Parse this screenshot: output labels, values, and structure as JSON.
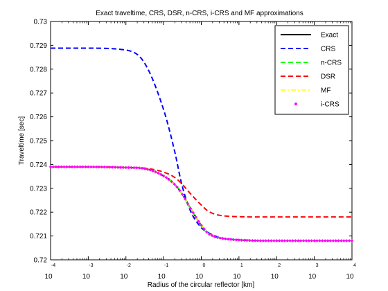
{
  "chart_data": {
    "type": "line",
    "title": "Exact traveltime, CRS, DSR, n-CRS, i-CRS and MF approximations",
    "xlabel": "Radius of the circular reflector [km]",
    "ylabel": "Traveltime [sec]",
    "xscale": "log",
    "xlim": [
      0.0001,
      10000
    ],
    "ylim": [
      0.72,
      0.73
    ],
    "grid": false,
    "legend_position": "top-right",
    "x_ticks": [
      {
        "base": "10",
        "exp": "-4"
      },
      {
        "base": "10",
        "exp": "-3"
      },
      {
        "base": "10",
        "exp": "-2"
      },
      {
        "base": "10",
        "exp": "-1"
      },
      {
        "base": "10",
        "exp": "0"
      },
      {
        "base": "10",
        "exp": "1"
      },
      {
        "base": "10",
        "exp": "2"
      },
      {
        "base": "10",
        "exp": "3"
      },
      {
        "base": "10",
        "exp": "4"
      }
    ],
    "y_ticks": [
      "0.72",
      "0.721",
      "0.722",
      "0.723",
      "0.724",
      "0.725",
      "0.726",
      "0.727",
      "0.728",
      "0.729",
      "0.73"
    ],
    "x": [
      0.0001,
      0.001,
      0.01,
      0.03,
      0.1,
      0.2,
      0.3,
      0.5,
      1,
      1.5,
      2,
      3,
      5,
      10,
      20,
      50,
      100,
      1000,
      10000
    ],
    "series": [
      {
        "name": "Exact",
        "color": "#000000",
        "style": "solid",
        "marker": "none",
        "values": [
          0.7239,
          0.7239,
          0.72387,
          0.72383,
          0.72352,
          0.72315,
          0.7228,
          0.7222,
          0.72145,
          0.72112,
          0.72101,
          0.72092,
          0.72087,
          0.72083,
          0.72081,
          0.7208,
          0.7208,
          0.7208,
          0.7208
        ]
      },
      {
        "name": "CRS",
        "color": "#0000ff",
        "style": "dash",
        "marker": "none",
        "values": [
          0.72888,
          0.72888,
          0.7288,
          0.7283,
          0.7263,
          0.7245,
          0.7232,
          0.7221,
          0.72135,
          0.72115,
          0.72105,
          0.72094,
          0.72088,
          0.72084,
          0.72082,
          0.7208,
          0.7208,
          0.7208,
          0.7208
        ]
      },
      {
        "name": "n-CRS",
        "color": "#00ff00",
        "style": "dash",
        "marker": "none",
        "values": [
          0.7239,
          0.7239,
          0.72387,
          0.72383,
          0.72352,
          0.72315,
          0.7228,
          0.7222,
          0.72145,
          0.72112,
          0.72101,
          0.72092,
          0.72087,
          0.72083,
          0.72081,
          0.7208,
          0.7208,
          0.7208,
          0.7208
        ]
      },
      {
        "name": "DSR",
        "color": "#ff0000",
        "style": "dash",
        "marker": "none",
        "values": [
          0.7239,
          0.7239,
          0.72388,
          0.72385,
          0.72368,
          0.72345,
          0.7232,
          0.7228,
          0.7223,
          0.72205,
          0.72195,
          0.72187,
          0.72183,
          0.72181,
          0.7218,
          0.7218,
          0.7218,
          0.7218,
          0.7218
        ]
      },
      {
        "name": "MF",
        "color": "#ffff00",
        "style": "dashdot",
        "marker": "none",
        "values": [
          0.7239,
          0.7239,
          0.72387,
          0.72383,
          0.72352,
          0.72315,
          0.7228,
          0.7222,
          0.72145,
          0.72112,
          0.72101,
          0.72092,
          0.72087,
          0.72083,
          0.72081,
          0.7208,
          0.7208,
          0.7208,
          0.7208
        ]
      },
      {
        "name": "i-CRS",
        "color": "#ff00ff",
        "style": "none",
        "marker": "diamond",
        "values": [
          0.7239,
          0.7239,
          0.72387,
          0.72383,
          0.72352,
          0.72315,
          0.7228,
          0.7222,
          0.72145,
          0.72112,
          0.72101,
          0.72092,
          0.72087,
          0.72083,
          0.72081,
          0.7208,
          0.7208,
          0.7208,
          0.7208
        ]
      }
    ]
  }
}
